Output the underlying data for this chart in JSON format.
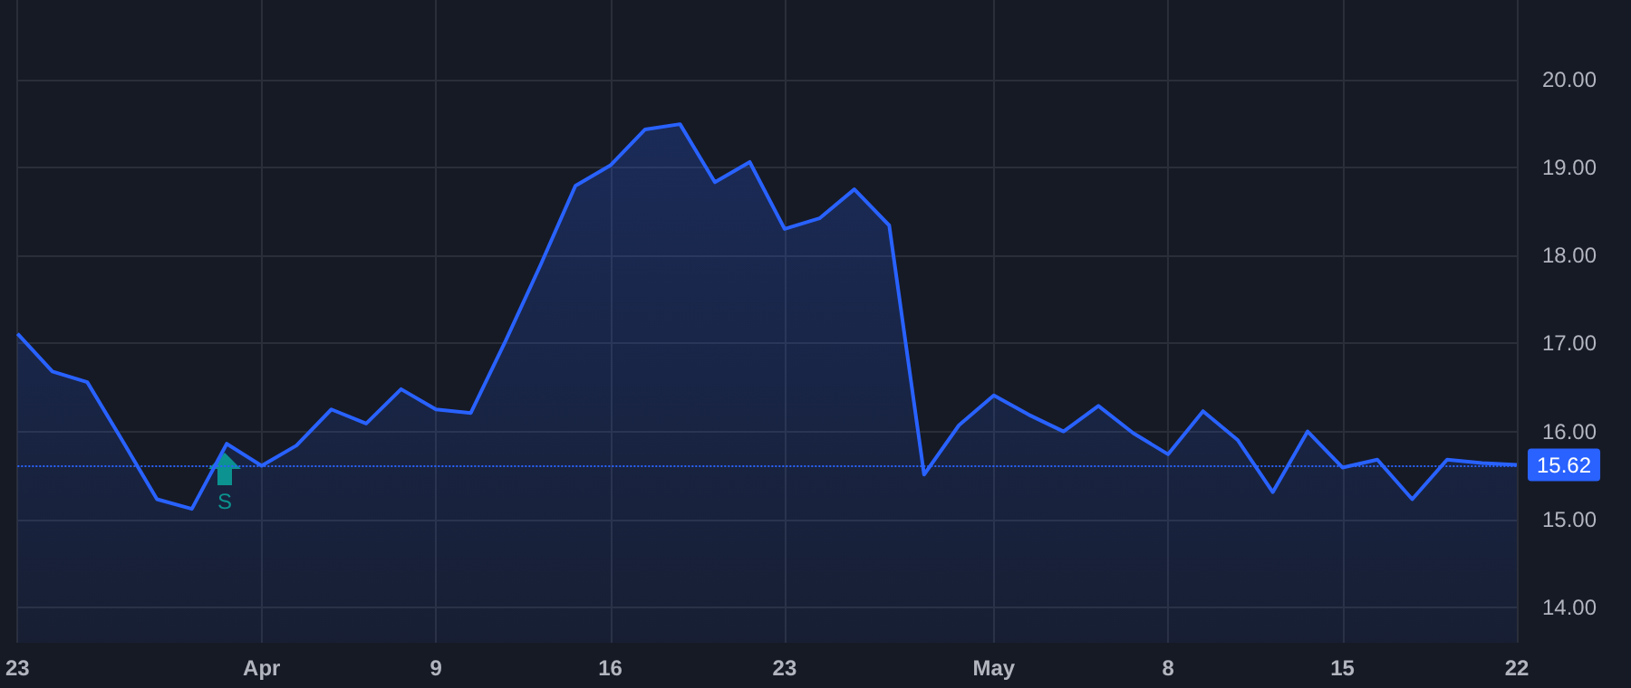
{
  "chart_data": {
    "type": "area",
    "categories": [
      "23",
      null,
      null,
      null,
      null,
      null,
      null,
      "Apr",
      null,
      null,
      null,
      null,
      "9",
      null,
      null,
      null,
      null,
      "16",
      null,
      null,
      null,
      null,
      "23",
      null,
      null,
      null,
      null,
      null,
      "May",
      null,
      null,
      null,
      null,
      "8",
      null,
      null,
      null,
      null,
      "15",
      null,
      null,
      null,
      null,
      "22"
    ],
    "series": [
      {
        "color": "#2962ff",
        "values": [
          17.11,
          16.68,
          16.56,
          15.9,
          15.23,
          15.12,
          15.86,
          15.61,
          15.84,
          16.25,
          16.09,
          16.48,
          16.25,
          16.21,
          17.03,
          17.89,
          18.79,
          19.02,
          19.43,
          19.49,
          18.83,
          19.06,
          18.3,
          18.42,
          18.75,
          18.34,
          15.51,
          16.07,
          16.41,
          16.19,
          16.0,
          16.29,
          15.98,
          15.74,
          16.23,
          15.9,
          15.31,
          16.0,
          15.59,
          15.68,
          15.23,
          15.68,
          15.64,
          15.62
        ]
      }
    ],
    "ylim": [
      13.6,
      20.9
    ],
    "yticks": [
      {
        "value": 14,
        "label": "14.00"
      },
      {
        "value": 15,
        "label": "15.00"
      },
      {
        "value": 16,
        "label": "16.00"
      },
      {
        "value": 17,
        "label": "17.00"
      },
      {
        "value": 18,
        "label": "18.00"
      },
      {
        "value": 19,
        "label": "19.00"
      },
      {
        "value": 20,
        "label": "20.00"
      }
    ],
    "ref_lines": [
      {
        "axis": "y",
        "value": 15.62,
        "label": "15.62",
        "color": "#2962ff",
        "line_style": "dotted"
      }
    ],
    "annotations": [
      "S"
    ],
    "grid": true,
    "marker": "none",
    "line_style": "solid"
  }
}
